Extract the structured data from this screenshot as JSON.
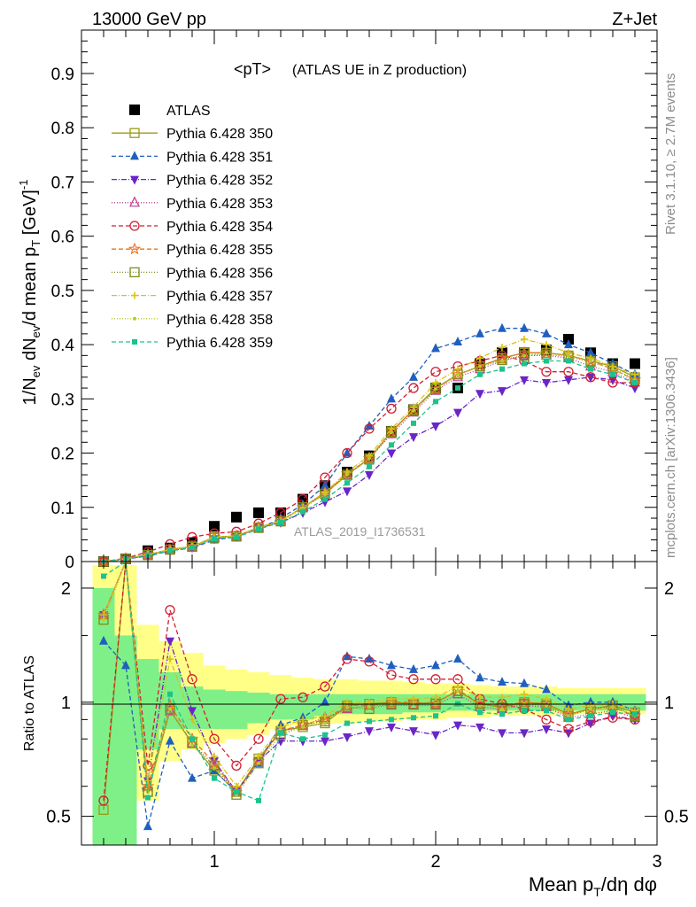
{
  "header": {
    "left": "13000 GeV pp",
    "right": "Z+Jet"
  },
  "plot_title": {
    "main": "<pT>",
    "sub": "(ATLAS UE in Z production)"
  },
  "watermark": "ATLAS_2019_I1736531",
  "side_text": {
    "rivet": "Rivet 3.1.10, ≥ 2.7M events",
    "mcplots": "mcplots.cern.ch [arXiv:1306.3436]"
  },
  "axes": {
    "ylabel_main": "1/N_ev dN_ev/d mean p_T [GeV]^-1",
    "ylabel_ratio": "Ratio to ATLAS",
    "xlabel": "Mean p_T/dη dφ"
  },
  "chart_data": [
    {
      "type": "scatter",
      "panel": "main",
      "xlim": [
        0.4,
        3.0
      ],
      "ylim": [
        0,
        0.98
      ],
      "xticks": [
        1,
        2,
        3
      ],
      "yticks": [
        0,
        0.1,
        0.2,
        0.3,
        0.4,
        0.5,
        0.6,
        0.7,
        0.8,
        0.9
      ],
      "ytick_labels": [
        "0",
        "0.1",
        "0.2",
        "0.3",
        "0.4",
        "0.5",
        "0.6",
        "0.7",
        "0.8",
        "0.9"
      ],
      "x": [
        0.5,
        0.6,
        0.7,
        0.8,
        0.9,
        1.0,
        1.1,
        1.2,
        1.3,
        1.4,
        1.5,
        1.6,
        1.7,
        1.8,
        1.9,
        2.0,
        2.1,
        2.2,
        2.3,
        2.4,
        2.5,
        2.6,
        2.7,
        2.8,
        2.9
      ],
      "series": [
        {
          "name": "ATLAS",
          "color": "#000000",
          "marker": "square-filled",
          "dash": "",
          "values": [
            0.0,
            0.005,
            0.02,
            0.025,
            0.035,
            0.065,
            0.082,
            0.09,
            0.09,
            0.115,
            0.14,
            0.165,
            0.195,
            0.24,
            0.28,
            0.32,
            0.32,
            0.365,
            0.385,
            0.385,
            0.39,
            0.41,
            0.385,
            0.365,
            0.365
          ]
        },
        {
          "name": "Pythia 6.428 350",
          "color": "#9a9a1a",
          "marker": "square-open",
          "dash": "",
          "values": [
            0.0,
            0.005,
            0.012,
            0.022,
            0.028,
            0.045,
            0.047,
            0.063,
            0.075,
            0.1,
            0.125,
            0.16,
            0.19,
            0.24,
            0.28,
            0.32,
            0.345,
            0.36,
            0.375,
            0.385,
            0.385,
            0.38,
            0.37,
            0.36,
            0.34
          ]
        },
        {
          "name": "Pythia 6.428 351",
          "color": "#1f5fbf",
          "marker": "triangle-up-filled",
          "dash": "5,3",
          "values": [
            0.0,
            0.005,
            0.01,
            0.02,
            0.025,
            0.04,
            0.045,
            0.06,
            0.08,
            0.105,
            0.14,
            0.2,
            0.25,
            0.3,
            0.34,
            0.393,
            0.405,
            0.42,
            0.43,
            0.43,
            0.42,
            0.4,
            0.385,
            0.365,
            0.345
          ]
        },
        {
          "name": "Pythia 6.428 352",
          "color": "#6a25c8",
          "marker": "triangle-down-filled",
          "dash": "6,2,1,2",
          "values": [
            0.0,
            0.004,
            0.012,
            0.02,
            0.026,
            0.042,
            0.046,
            0.062,
            0.072,
            0.09,
            0.11,
            0.13,
            0.16,
            0.2,
            0.23,
            0.25,
            0.275,
            0.31,
            0.315,
            0.335,
            0.33,
            0.335,
            0.34,
            0.335,
            0.32
          ]
        },
        {
          "name": "Pythia 6.428 353",
          "color": "#c03c8c",
          "marker": "triangle-up-open",
          "dash": "1,2",
          "values": [
            0.0,
            0.005,
            0.013,
            0.022,
            0.028,
            0.044,
            0.047,
            0.063,
            0.076,
            0.1,
            0.128,
            0.16,
            0.19,
            0.235,
            0.275,
            0.315,
            0.34,
            0.355,
            0.37,
            0.38,
            0.38,
            0.375,
            0.36,
            0.35,
            0.33
          ]
        },
        {
          "name": "Pythia 6.428 354",
          "color": "#d21e32",
          "marker": "circle-open",
          "dash": "5,3",
          "values": [
            0.0,
            0.006,
            0.018,
            0.032,
            0.045,
            0.052,
            0.055,
            0.07,
            0.09,
            0.115,
            0.155,
            0.2,
            0.245,
            0.282,
            0.32,
            0.35,
            0.36,
            0.37,
            0.38,
            0.37,
            0.35,
            0.35,
            0.34,
            0.33,
            0.33
          ]
        },
        {
          "name": "Pythia 6.428 355",
          "color": "#e8731e",
          "marker": "star-open",
          "dash": "5,3",
          "values": [
            0.0,
            0.005,
            0.013,
            0.022,
            0.028,
            0.045,
            0.047,
            0.062,
            0.075,
            0.1,
            0.126,
            0.162,
            0.19,
            0.24,
            0.28,
            0.318,
            0.345,
            0.36,
            0.375,
            0.385,
            0.385,
            0.38,
            0.37,
            0.355,
            0.335
          ]
        },
        {
          "name": "Pythia 6.428 356",
          "color": "#7f8c1a",
          "marker": "square-open",
          "dash": "1,2",
          "values": [
            0.0,
            0.005,
            0.012,
            0.022,
            0.027,
            0.044,
            0.046,
            0.062,
            0.074,
            0.1,
            0.125,
            0.16,
            0.188,
            0.238,
            0.278,
            0.318,
            0.345,
            0.36,
            0.372,
            0.38,
            0.382,
            0.378,
            0.368,
            0.356,
            0.336
          ]
        },
        {
          "name": "Pythia 6.428 357",
          "color": "#d8c21a",
          "marker": "cross",
          "dash": "6,2,1,2",
          "values": [
            0.0,
            0.005,
            0.013,
            0.022,
            0.028,
            0.045,
            0.047,
            0.063,
            0.075,
            0.1,
            0.128,
            0.165,
            0.195,
            0.245,
            0.285,
            0.33,
            0.355,
            0.375,
            0.395,
            0.41,
            0.4,
            0.385,
            0.375,
            0.36,
            0.345
          ]
        },
        {
          "name": "Pythia 6.428 358",
          "color": "#b7cc2a",
          "marker": "dot",
          "dash": "1,2",
          "values": [
            0.0,
            0.005,
            0.012,
            0.021,
            0.027,
            0.044,
            0.046,
            0.062,
            0.074,
            0.098,
            0.124,
            0.16,
            0.19,
            0.238,
            0.278,
            0.318,
            0.345,
            0.36,
            0.37,
            0.38,
            0.385,
            0.38,
            0.37,
            0.355,
            0.335
          ]
        },
        {
          "name": "Pythia 6.428 359",
          "color": "#1ec28c",
          "marker": "square-filled-small",
          "dash": "5,3",
          "values": [
            0.0,
            0.005,
            0.012,
            0.02,
            0.026,
            0.042,
            0.045,
            0.06,
            0.072,
            0.092,
            0.115,
            0.145,
            0.175,
            0.215,
            0.255,
            0.295,
            0.32,
            0.345,
            0.355,
            0.365,
            0.37,
            0.37,
            0.355,
            0.345,
            0.33
          ]
        }
      ]
    },
    {
      "type": "line",
      "panel": "ratio",
      "xlim": [
        0.4,
        3.0
      ],
      "ylim": [
        0.42,
        2.35
      ],
      "log_y": true,
      "xticks": [
        1,
        2,
        3
      ],
      "xtick_labels": [
        "1",
        "2",
        "3"
      ],
      "yticks": [
        0.5,
        1,
        2
      ],
      "ytick_labels": [
        "0.5",
        "1",
        "2"
      ],
      "band_inner": [
        [
          0.5,
          0.22,
          2.0
        ],
        [
          0.6,
          0.35,
          1.5
        ],
        [
          0.7,
          0.75,
          1.3
        ],
        [
          0.8,
          0.85,
          1.2
        ],
        [
          0.9,
          0.85,
          1.1
        ],
        [
          1.0,
          0.85,
          1.08
        ],
        [
          1.1,
          0.85,
          1.07
        ],
        [
          1.2,
          0.88,
          1.06
        ],
        [
          1.3,
          0.9,
          1.05
        ],
        [
          1.4,
          0.9,
          1.05
        ],
        [
          1.5,
          0.92,
          1.05
        ],
        [
          1.6,
          0.93,
          1.05
        ],
        [
          1.7,
          0.93,
          1.05
        ],
        [
          1.8,
          0.93,
          1.05
        ],
        [
          1.9,
          0.94,
          1.05
        ],
        [
          2.0,
          0.94,
          1.05
        ],
        [
          2.1,
          0.95,
          1.05
        ],
        [
          2.2,
          0.95,
          1.05
        ],
        [
          2.3,
          0.95,
          1.05
        ],
        [
          2.4,
          0.95,
          1.05
        ],
        [
          2.5,
          0.95,
          1.05
        ],
        [
          2.6,
          0.95,
          1.05
        ],
        [
          2.7,
          0.95,
          1.05
        ],
        [
          2.8,
          0.95,
          1.05
        ],
        [
          2.9,
          0.95,
          1.05
        ]
      ],
      "band_outer": [
        [
          0.5,
          0.2,
          2.3
        ],
        [
          0.6,
          0.22,
          2.3
        ],
        [
          0.7,
          0.55,
          1.6
        ],
        [
          0.8,
          0.7,
          1.45
        ],
        [
          0.9,
          0.75,
          1.35
        ],
        [
          1.0,
          0.78,
          1.25
        ],
        [
          1.1,
          0.8,
          1.22
        ],
        [
          1.2,
          0.82,
          1.2
        ],
        [
          1.3,
          0.85,
          1.18
        ],
        [
          1.4,
          0.87,
          1.16
        ],
        [
          1.5,
          0.88,
          1.15
        ],
        [
          1.6,
          0.88,
          1.15
        ],
        [
          1.7,
          0.89,
          1.14
        ],
        [
          1.8,
          0.89,
          1.14
        ],
        [
          1.9,
          0.9,
          1.13
        ],
        [
          2.0,
          0.9,
          1.12
        ],
        [
          2.1,
          0.91,
          1.12
        ],
        [
          2.2,
          0.91,
          1.11
        ],
        [
          2.3,
          0.92,
          1.1
        ],
        [
          2.4,
          0.92,
          1.1
        ],
        [
          2.5,
          0.92,
          1.1
        ],
        [
          2.6,
          0.93,
          1.09
        ],
        [
          2.7,
          0.93,
          1.09
        ],
        [
          2.8,
          0.93,
          1.09
        ],
        [
          2.9,
          0.93,
          1.09
        ]
      ],
      "x": [
        0.5,
        0.6,
        0.7,
        0.8,
        0.9,
        1.0,
        1.1,
        1.2,
        1.3,
        1.4,
        1.5,
        1.6,
        1.7,
        1.8,
        1.9,
        2.0,
        2.1,
        2.2,
        2.3,
        2.4,
        2.5,
        2.6,
        2.7,
        2.8,
        2.9
      ],
      "series": [
        {
          "name": "Pythia 6.428 350",
          "values": [
            0.52,
            2.4,
            0.58,
            0.95,
            0.78,
            0.66,
            0.58,
            0.71,
            0.84,
            0.86,
            0.88,
            0.98,
            0.99,
            1.0,
            0.99,
            1.0,
            1.07,
            0.99,
            0.97,
            1.0,
            0.99,
            0.93,
            0.96,
            0.98,
            0.94
          ]
        },
        {
          "name": "Pythia 6.428 351",
          "values": [
            1.45,
            1.25,
            0.47,
            0.79,
            0.63,
            0.66,
            0.58,
            0.69,
            0.87,
            0.91,
            1.0,
            1.32,
            1.3,
            1.25,
            1.22,
            1.25,
            1.3,
            1.16,
            1.13,
            1.12,
            1.08,
            0.98,
            1.0,
            1.0,
            0.95
          ]
        },
        {
          "name": "Pythia 6.428 352",
          "values": [
            1.7,
            2.4,
            0.62,
            1.45,
            0.95,
            0.7,
            0.58,
            0.7,
            0.79,
            0.79,
            0.79,
            0.81,
            0.84,
            0.86,
            0.84,
            0.82,
            0.87,
            0.86,
            0.83,
            0.83,
            0.85,
            0.83,
            0.88,
            0.92,
            0.9
          ]
        },
        {
          "name": "Pythia 6.428 353",
          "values": [
            1.7,
            2.4,
            0.6,
            0.95,
            0.78,
            0.68,
            0.58,
            0.7,
            0.84,
            0.87,
            0.91,
            0.96,
            0.98,
            0.98,
            0.98,
            0.98,
            1.05,
            0.97,
            0.96,
            0.98,
            0.97,
            0.91,
            0.93,
            0.95,
            0.91
          ]
        },
        {
          "name": "Pythia 6.428 354",
          "values": [
            0.55,
            2.4,
            0.68,
            1.75,
            1.15,
            0.8,
            0.68,
            0.8,
            1.02,
            1.03,
            1.1,
            1.3,
            1.28,
            1.18,
            1.15,
            1.15,
            1.15,
            1.02,
            0.99,
            0.96,
            0.9,
            0.85,
            0.89,
            0.91,
            0.9
          ]
        },
        {
          "name": "Pythia 6.428 355",
          "values": [
            1.7,
            2.4,
            0.6,
            0.98,
            0.8,
            0.69,
            0.58,
            0.7,
            0.84,
            0.87,
            0.9,
            0.98,
            0.98,
            1.0,
            1.0,
            0.99,
            1.08,
            0.99,
            0.98,
            1.0,
            0.99,
            0.93,
            0.96,
            0.97,
            0.92
          ]
        },
        {
          "name": "Pythia 6.428 356",
          "values": [
            1.65,
            2.4,
            0.58,
            0.96,
            0.78,
            0.68,
            0.57,
            0.69,
            0.82,
            0.87,
            0.89,
            0.97,
            0.96,
            0.99,
            0.99,
            0.99,
            1.07,
            0.99,
            0.97,
            0.99,
            0.98,
            0.92,
            0.96,
            0.98,
            0.92
          ]
        },
        {
          "name": "Pythia 6.428 357",
          "values": [
            1.7,
            2.4,
            0.62,
            1.3,
            0.9,
            0.72,
            0.6,
            0.72,
            0.86,
            0.9,
            0.92,
            1.0,
            1.0,
            1.02,
            1.02,
            1.03,
            1.1,
            1.03,
            1.03,
            1.05,
            1.02,
            0.96,
            0.98,
            0.99,
            0.95
          ]
        },
        {
          "name": "Pythia 6.428 358",
          "values": [
            1.65,
            2.4,
            0.58,
            0.96,
            0.77,
            0.67,
            0.57,
            0.69,
            0.82,
            0.86,
            0.88,
            0.97,
            0.97,
            0.99,
            0.99,
            0.99,
            1.07,
            0.98,
            0.96,
            0.99,
            0.98,
            0.92,
            0.96,
            0.97,
            0.92
          ]
        },
        {
          "name": "Pythia 6.428 359",
          "values": [
            2.15,
            2.4,
            0.56,
            1.05,
            0.8,
            0.63,
            0.58,
            0.55,
            0.83,
            0.8,
            0.82,
            0.88,
            0.89,
            0.9,
            0.91,
            0.92,
            0.99,
            0.94,
            0.93,
            0.95,
            0.95,
            0.9,
            0.92,
            0.94,
            0.93
          ]
        }
      ]
    }
  ]
}
